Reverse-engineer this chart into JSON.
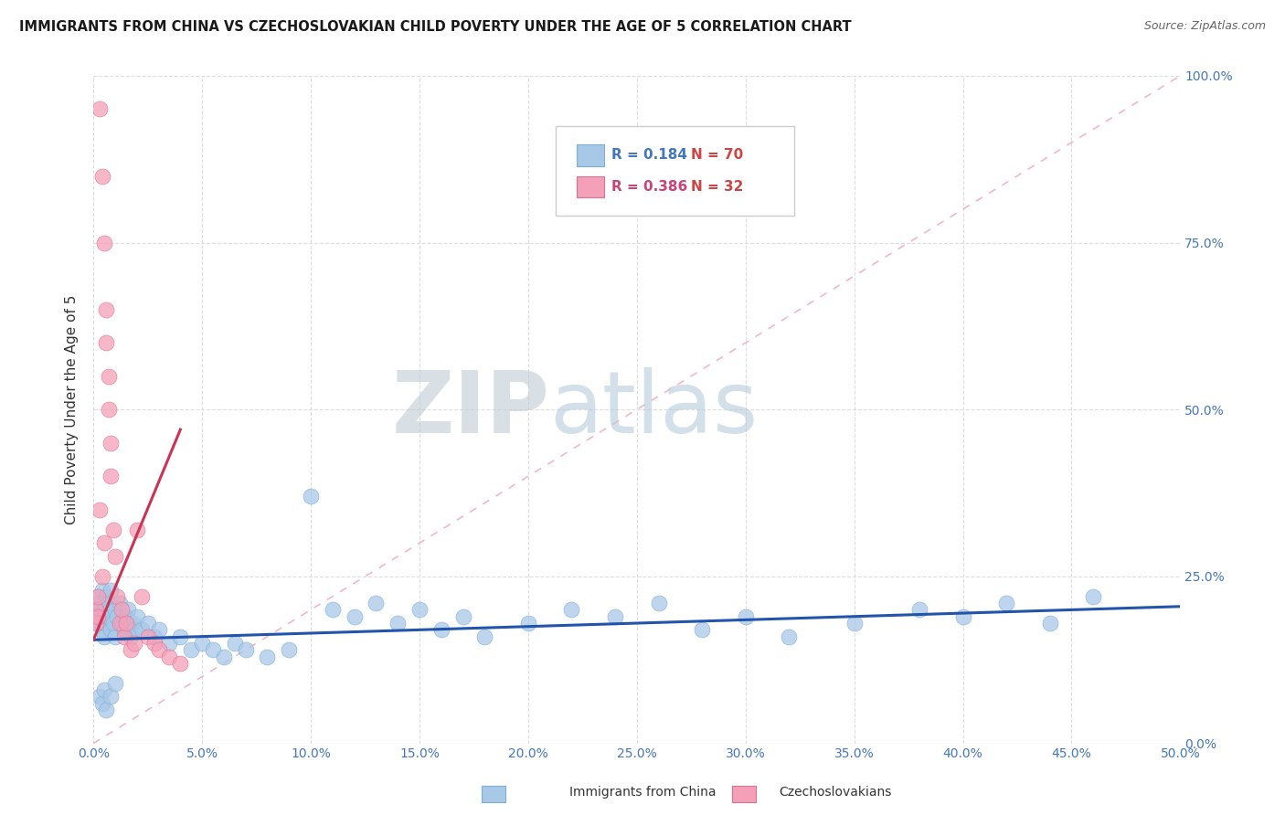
{
  "title": "IMMIGRANTS FROM CHINA VS CZECHOSLOVAKIAN CHILD POVERTY UNDER THE AGE OF 5 CORRELATION CHART",
  "source": "Source: ZipAtlas.com",
  "ylabel_label": "Child Poverty Under the Age of 5",
  "r1": 0.184,
  "n1": 70,
  "r2": 0.386,
  "n2": 32,
  "series1_color": "#a8c8e8",
  "series1_edge": "#7bafd4",
  "series2_color": "#f4a0b8",
  "series2_edge": "#e07090",
  "trend1_color": "#2255aa",
  "trend2_color": "#cc3355",
  "diag_color": "#f0b0c0",
  "xlim": [
    0.0,
    0.5
  ],
  "ylim": [
    0.0,
    1.0
  ],
  "background_color": "#ffffff",
  "grid_color": "#dddddd",
  "title_color": "#1a1a1a",
  "source_color": "#666666",
  "tick_color": "#4477bb",
  "ylabel_color": "#333333",
  "watermark_zip_color": "#c8dce8",
  "watermark_atlas_color": "#b8ccd8",
  "china_points_x": [
    0.001,
    0.002,
    0.002,
    0.003,
    0.003,
    0.004,
    0.004,
    0.005,
    0.005,
    0.006,
    0.006,
    0.007,
    0.007,
    0.008,
    0.008,
    0.009,
    0.01,
    0.01,
    0.011,
    0.012,
    0.013,
    0.014,
    0.015,
    0.016,
    0.017,
    0.018,
    0.019,
    0.02,
    0.022,
    0.025,
    0.028,
    0.03,
    0.035,
    0.04,
    0.045,
    0.05,
    0.055,
    0.06,
    0.065,
    0.07,
    0.08,
    0.09,
    0.1,
    0.11,
    0.12,
    0.13,
    0.14,
    0.15,
    0.16,
    0.17,
    0.18,
    0.2,
    0.22,
    0.24,
    0.26,
    0.28,
    0.3,
    0.32,
    0.35,
    0.38,
    0.4,
    0.42,
    0.44,
    0.46,
    0.003,
    0.004,
    0.005,
    0.006,
    0.008,
    0.01
  ],
  "china_points_y": [
    0.2,
    0.22,
    0.18,
    0.19,
    0.21,
    0.17,
    0.23,
    0.16,
    0.2,
    0.18,
    0.22,
    0.19,
    0.21,
    0.17,
    0.23,
    0.18,
    0.16,
    0.2,
    0.19,
    0.21,
    0.18,
    0.17,
    0.19,
    0.2,
    0.16,
    0.18,
    0.17,
    0.19,
    0.17,
    0.18,
    0.16,
    0.17,
    0.15,
    0.16,
    0.14,
    0.15,
    0.14,
    0.13,
    0.15,
    0.14,
    0.13,
    0.14,
    0.37,
    0.2,
    0.19,
    0.21,
    0.18,
    0.2,
    0.17,
    0.19,
    0.16,
    0.18,
    0.2,
    0.19,
    0.21,
    0.17,
    0.19,
    0.16,
    0.18,
    0.2,
    0.19,
    0.21,
    0.18,
    0.22,
    0.07,
    0.06,
    0.08,
    0.05,
    0.07,
    0.09
  ],
  "czech_points_x": [
    0.001,
    0.001,
    0.002,
    0.002,
    0.003,
    0.003,
    0.004,
    0.004,
    0.005,
    0.005,
    0.006,
    0.006,
    0.007,
    0.007,
    0.008,
    0.008,
    0.009,
    0.01,
    0.011,
    0.012,
    0.013,
    0.014,
    0.015,
    0.017,
    0.019,
    0.02,
    0.022,
    0.025,
    0.028,
    0.03,
    0.035,
    0.04
  ],
  "czech_points_y": [
    0.2,
    0.18,
    0.22,
    0.19,
    0.95,
    0.35,
    0.85,
    0.25,
    0.75,
    0.3,
    0.65,
    0.6,
    0.55,
    0.5,
    0.45,
    0.4,
    0.32,
    0.28,
    0.22,
    0.18,
    0.2,
    0.16,
    0.18,
    0.14,
    0.15,
    0.32,
    0.22,
    0.16,
    0.15,
    0.14,
    0.13,
    0.12
  ],
  "trend1_x_start": 0.0,
  "trend1_x_end": 0.5,
  "trend1_y_start": 0.155,
  "trend1_y_end": 0.205,
  "trend2_x_start": 0.0,
  "trend2_x_end": 0.04,
  "trend2_y_start": 0.155,
  "trend2_y_end": 0.47
}
